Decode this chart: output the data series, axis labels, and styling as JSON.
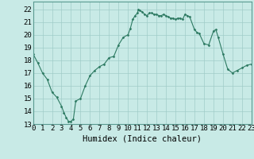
{
  "x": [
    0,
    0.5,
    1,
    1.5,
    2,
    2.5,
    3,
    3.25,
    3.5,
    3.75,
    4,
    4.25,
    4.5,
    5,
    5.5,
    6,
    6.5,
    7,
    7.5,
    8,
    8.5,
    9,
    9.5,
    10,
    10.25,
    10.5,
    10.75,
    11,
    11.1,
    11.25,
    11.5,
    11.75,
    12,
    12.25,
    12.5,
    12.75,
    13,
    13.25,
    13.5,
    13.75,
    14,
    14.25,
    14.5,
    14.75,
    15,
    15.25,
    15.5,
    15.75,
    16,
    16.25,
    16.5,
    17,
    17.25,
    17.5,
    18,
    18.5,
    19,
    19.25,
    19.5,
    20,
    20.5,
    21,
    21.5,
    22,
    22.5,
    23
  ],
  "y": [
    18.5,
    17.8,
    17.0,
    16.5,
    15.5,
    15.1,
    14.4,
    13.9,
    13.5,
    13.2,
    13.2,
    13.4,
    14.8,
    15.0,
    16.0,
    16.8,
    17.2,
    17.5,
    17.7,
    18.2,
    18.3,
    19.2,
    19.8,
    20.0,
    20.5,
    21.2,
    21.5,
    21.7,
    22.0,
    21.9,
    21.8,
    21.6,
    21.5,
    21.7,
    21.7,
    21.6,
    21.6,
    21.5,
    21.5,
    21.6,
    21.5,
    21.4,
    21.3,
    21.3,
    21.2,
    21.3,
    21.3,
    21.2,
    21.6,
    21.5,
    21.4,
    20.4,
    20.2,
    20.1,
    19.3,
    19.2,
    20.3,
    20.4,
    19.8,
    18.5,
    17.3,
    17.0,
    17.2,
    17.4,
    17.6,
    17.7
  ],
  "xlabel": "Humidex (Indice chaleur)",
  "xlim": [
    0,
    23
  ],
  "ylim": [
    13,
    22.6
  ],
  "yticks": [
    13,
    14,
    15,
    16,
    17,
    18,
    19,
    20,
    21,
    22
  ],
  "xticks": [
    0,
    1,
    2,
    3,
    4,
    5,
    6,
    7,
    8,
    9,
    10,
    11,
    12,
    13,
    14,
    15,
    16,
    17,
    18,
    19,
    20,
    21,
    22,
    23
  ],
  "line_color": "#2d7a62",
  "marker_color": "#2d7a62",
  "bg_color": "#c8eae6",
  "grid_color": "#a0ccc8",
  "xlabel_fontsize": 7.5,
  "tick_fontsize": 6.5
}
